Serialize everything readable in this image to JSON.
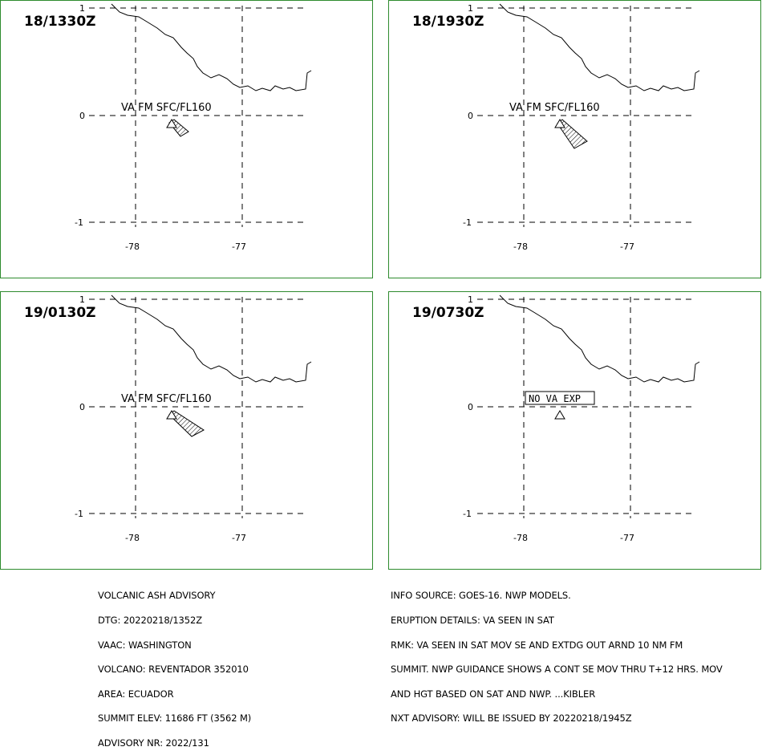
{
  "panels": [
    {
      "time": "18/1330Z",
      "label": "VA FM SFC/FL160",
      "ash": "small"
    },
    {
      "time": "18/1930Z",
      "label": "VA FM SFC/FL160",
      "ash": "medium"
    },
    {
      "time": "19/0130Z",
      "label": "VA FM SFC/FL160",
      "ash": "large"
    },
    {
      "time": "19/0730Z",
      "label": "NO VA EXP",
      "ash": "none"
    }
  ],
  "axes": {
    "lat_ticks": [
      "1",
      "0",
      "-1"
    ],
    "lon_ticks": [
      "-78",
      "-77"
    ]
  },
  "colors": {
    "frame": "#2e8b2e",
    "lines": "#000000"
  },
  "advisory_left": [
    "VOLCANIC ASH ADVISORY",
    "DTG: 20220218/1352Z",
    "VAAC: WASHINGTON",
    "VOLCANO: REVENTADOR 352010",
    "AREA: ECUADOR",
    "SUMMIT ELEV: 11686 FT (3562 M)",
    "ADVISORY NR: 2022/131"
  ],
  "advisory_right": [
    "INFO SOURCE: GOES-16. NWP MODELS.",
    "ERUPTION DETAILS: VA SEEN IN SAT",
    "RMK: VA SEEN IN SAT MOV SE AND EXTDG OUT ARND 10 NM FM",
    "SUMMIT. NWP GUIDANCE SHOWS A CONT SE MOV THRU T+12 HRS. MOV",
    "AND HGT BASED ON SAT AND NWP. ...KIBLER",
    "NXT ADVISORY: WILL BE ISSUED BY 20220218/1945Z"
  ]
}
